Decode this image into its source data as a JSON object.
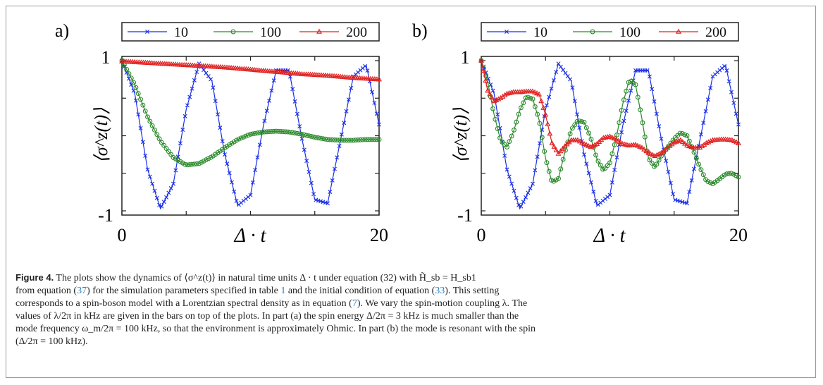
{
  "chart_data": [
    {
      "panel": "a)",
      "type": "line",
      "xlabel": "Δ · t",
      "ylabel": "⟨σ^z(t)⟩",
      "xlim": [
        0,
        20
      ],
      "ylim": [
        -1,
        1
      ],
      "xticks": [
        "0",
        "20"
      ],
      "yticks": [
        "1",
        "-1"
      ],
      "legend": "top",
      "series": [
        {
          "name": "10",
          "color": "#1a2ee6",
          "marker": "x",
          "x": [
            0,
            1,
            2,
            3,
            4,
            5,
            6,
            7,
            8,
            9,
            10,
            11,
            12,
            13,
            14,
            15,
            16,
            17,
            18,
            19,
            20
          ],
          "y": [
            1.0,
            0.56,
            -0.45,
            -0.97,
            -0.64,
            0.35,
            0.96,
            0.73,
            -0.25,
            -0.93,
            -0.79,
            0.13,
            0.87,
            0.87,
            -0.04,
            -0.85,
            -0.9,
            -0.06,
            0.79,
            0.94,
            0.15
          ]
        },
        {
          "name": "100",
          "color": "#2a8a2a",
          "marker": "o",
          "x": [
            0,
            1,
            2,
            3,
            4,
            5,
            6,
            7,
            8,
            9,
            10,
            11,
            12,
            13,
            14,
            15,
            16,
            17,
            18,
            19,
            20
          ],
          "y": [
            1.0,
            0.68,
            0.25,
            -0.07,
            -0.29,
            -0.39,
            -0.37,
            -0.28,
            -0.16,
            -0.05,
            0.02,
            0.05,
            0.06,
            0.05,
            0.02,
            -0.02,
            -0.05,
            -0.06,
            -0.06,
            -0.05,
            -0.05
          ]
        },
        {
          "name": "200",
          "color": "#e02020",
          "marker": "^",
          "x": [
            0,
            2,
            4,
            6,
            8,
            10,
            12,
            14,
            16,
            18,
            20
          ],
          "y": [
            0.99,
            0.97,
            0.95,
            0.93,
            0.91,
            0.88,
            0.85,
            0.82,
            0.8,
            0.77,
            0.75
          ]
        }
      ]
    },
    {
      "panel": "b)",
      "type": "line",
      "xlabel": "Δ · t",
      "ylabel": "⟨σ^z(t)⟩",
      "xlim": [
        0,
        20
      ],
      "ylim": [
        -1,
        1
      ],
      "xticks": [
        "0",
        "20"
      ],
      "yticks": [
        "1",
        "-1"
      ],
      "legend": "top",
      "series": [
        {
          "name": "10",
          "color": "#1a2ee6",
          "marker": "x",
          "x": [
            0,
            1,
            2,
            3,
            4,
            5,
            6,
            7,
            8,
            9,
            10,
            11,
            12,
            13,
            14,
            15,
            16,
            17,
            18,
            19,
            20
          ],
          "y": [
            1.0,
            0.56,
            -0.45,
            -0.97,
            -0.64,
            0.35,
            0.96,
            0.73,
            -0.25,
            -0.93,
            -0.79,
            0.13,
            0.87,
            0.87,
            -0.04,
            -0.85,
            -0.9,
            -0.06,
            0.79,
            0.94,
            0.15
          ]
        },
        {
          "name": "100",
          "color": "#2a8a2a",
          "marker": "o",
          "x": [
            0,
            0.5,
            1,
            1.5,
            2,
            2.5,
            3,
            3.5,
            4,
            4.5,
            5,
            5.5,
            6,
            6.5,
            7,
            7.5,
            8,
            8.5,
            9,
            9.5,
            10,
            10.5,
            11,
            11.5,
            12,
            12.5,
            13,
            13.5,
            14,
            14.5,
            15,
            15.5,
            16,
            16.5,
            17,
            17.5,
            18,
            18.5,
            19,
            19.5,
            20
          ],
          "y": [
            1.0,
            0.72,
            0.28,
            -0.06,
            -0.15,
            0.05,
            0.34,
            0.52,
            0.49,
            0.21,
            -0.3,
            -0.62,
            -0.57,
            -0.22,
            0.08,
            0.2,
            0.18,
            -0.02,
            -0.31,
            -0.46,
            -0.36,
            -0.03,
            0.42,
            0.74,
            0.68,
            0.22,
            -0.3,
            -0.42,
            -0.27,
            -0.15,
            -0.04,
            0.04,
            0.0,
            -0.2,
            -0.42,
            -0.6,
            -0.64,
            -0.58,
            -0.51,
            -0.5,
            -0.55
          ]
        },
        {
          "name": "200",
          "color": "#e02020",
          "marker": "^",
          "x": [
            0,
            0.5,
            1,
            1.5,
            2,
            2.5,
            3,
            3.5,
            4,
            4.5,
            5,
            5.5,
            6,
            6.5,
            7,
            7.5,
            8,
            8.5,
            9,
            9.5,
            10,
            10.5,
            11,
            11.5,
            12,
            12.5,
            13,
            13.5,
            14,
            14.5,
            15,
            15.5,
            16,
            16.5,
            17,
            17.5,
            18,
            18.5,
            19,
            19.5,
            20
          ],
          "y": [
            1.0,
            0.6,
            0.46,
            0.5,
            0.56,
            0.58,
            0.58,
            0.59,
            0.59,
            0.55,
            0.28,
            -0.1,
            -0.24,
            -0.14,
            -0.06,
            -0.06,
            -0.11,
            -0.15,
            -0.11,
            -0.03,
            -0.01,
            -0.05,
            -0.11,
            -0.13,
            -0.12,
            -0.16,
            -0.23,
            -0.27,
            -0.23,
            -0.16,
            -0.09,
            -0.06,
            -0.13,
            -0.16,
            -0.16,
            -0.1,
            -0.06,
            -0.05,
            -0.05,
            -0.06,
            -0.1
          ]
        }
      ]
    }
  ],
  "caption": {
    "label": "Figure 4.",
    "line1": " The plots show the dynamics of ⟨σ^z(t)⟩ in natural time units Δ · t under equation (32) with H̃_sb = H_sb1",
    "line2a": "from  equation (",
    "ref37": "37",
    "line2b": ") for the simulation parameters specified in table ",
    "ref_table": "1",
    "line2c": " and the initial condition of equation (",
    "ref33": "33",
    "line2d": "). This setting",
    "line3a": "corresponds to a spin-boson model with a Lorentzian spectral density as in  equation (",
    "ref7": "7",
    "line3b": "). We vary the spin-motion coupling λ. The",
    "line4": "values of λ/2π in kHz are given in the bars on top of the plots. In part (a) the spin energy Δ/2π = 3 kHz is much smaller than the",
    "line5": "mode frequency ω_m/2π = 100 kHz, so that the environment is approximately Ohmic. In part (b) the mode is resonant with the spin",
    "line6": "(Δ/2π = 100 kHz)."
  }
}
